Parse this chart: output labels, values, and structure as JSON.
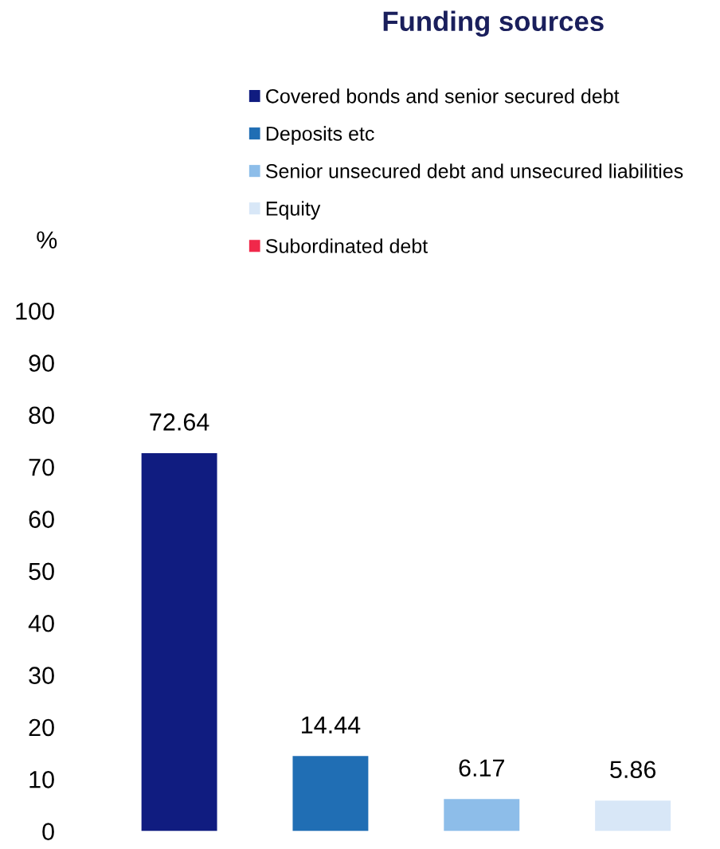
{
  "chart_data": {
    "type": "bar",
    "title": "Funding sources",
    "ylabel": "%",
    "categories": [
      null,
      null,
      null,
      null
    ],
    "series": [
      {
        "name": "Covered bonds and senior secured debt",
        "color": "#101c80",
        "values": [
          72.64,
          null,
          null,
          null
        ]
      },
      {
        "name": "Deposits etc",
        "color": "#206eb4",
        "values": [
          null,
          14.44,
          null,
          null
        ]
      },
      {
        "name": "Senior unsecured debt and unsecured liabilities",
        "color": "#8dbde9",
        "values": [
          null,
          null,
          6.17,
          null
        ]
      },
      {
        "name": "Equity",
        "color": "#d8e7f7",
        "values": [
          null,
          null,
          null,
          5.86
        ]
      },
      {
        "name": "Subordinated debt",
        "color": "#f0284a",
        "values": [
          null,
          null,
          null,
          null
        ]
      }
    ],
    "ylim": [
      0,
      100
    ],
    "yticks": [
      0,
      10,
      20,
      30,
      40,
      50,
      60,
      70,
      80,
      90,
      100
    ],
    "stacked": true,
    "data_labels": true,
    "legend": "top",
    "grid": false
  }
}
